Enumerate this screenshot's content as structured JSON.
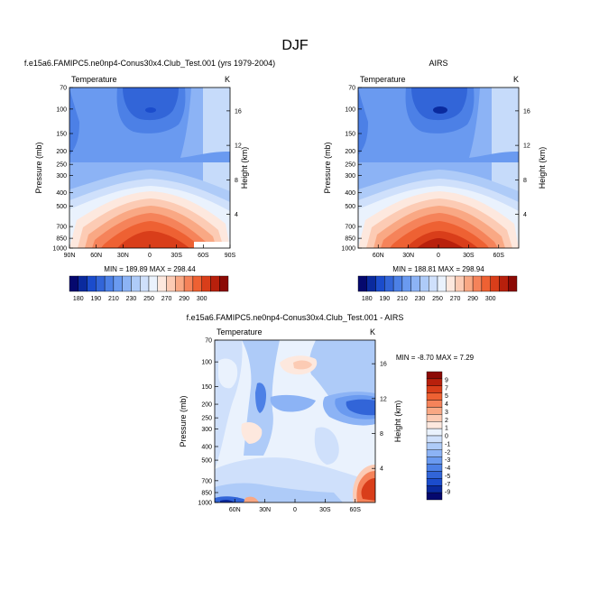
{
  "page_title": "DJF",
  "chart_data": [
    {
      "type": "heatmap",
      "title": "f.e15a6.FAMIPC5.ne0np4-Conus30x4.Club_Test.001 (yrs 1979-2004)",
      "subtitle_left": "Temperature",
      "subtitle_right": "K",
      "ylabel": "Pressure (mb)",
      "ylabel_right": "Height (km)",
      "x_ticks": [
        "90N",
        "60N",
        "30N",
        "0",
        "30S",
        "60S",
        "90S"
      ],
      "x_values": [
        90,
        60,
        30,
        0,
        -30,
        -60,
        -90
      ],
      "y_ticks": [
        "70",
        "100",
        "150",
        "200",
        "250",
        "300",
        "400",
        "500",
        "700",
        "850",
        "1000"
      ],
      "y_values": [
        70,
        100,
        150,
        200,
        250,
        300,
        400,
        500,
        700,
        850,
        1000
      ],
      "y_log": true,
      "height_ticks": [
        "16",
        "12",
        "8",
        "4"
      ],
      "height_values": [
        16,
        12,
        8,
        4
      ],
      "stats": "MIN = 189.89   MAX = 298.44",
      "min": 189.89,
      "max": 298.44
    },
    {
      "type": "heatmap",
      "title": "AIRS",
      "subtitle_left": "Temperature",
      "subtitle_right": "K",
      "ylabel": "Pressure (mb)",
      "ylabel_right": "Height (km)",
      "x_ticks": [
        "60N",
        "30N",
        "0",
        "30S",
        "60S"
      ],
      "x_values": [
        60,
        30,
        0,
        -30,
        -60
      ],
      "y_ticks": [
        "70",
        "100",
        "150",
        "200",
        "250",
        "300",
        "400",
        "500",
        "700",
        "850",
        "1000"
      ],
      "y_values": [
        70,
        100,
        150,
        200,
        250,
        300,
        400,
        500,
        700,
        850,
        1000
      ],
      "y_log": true,
      "height_ticks": [
        "16",
        "12",
        "8",
        "4"
      ],
      "height_values": [
        16,
        12,
        8,
        4
      ],
      "stats": "MIN = 188.81   MAX = 298.94",
      "min": 188.81,
      "max": 298.94
    },
    {
      "type": "heatmap",
      "title": "f.e15a6.FAMIPC5.ne0np4-Conus30x4.Club_Test.001 - AIRS",
      "subtitle_left": "Temperature",
      "subtitle_right": "K",
      "ylabel": "Pressure (mb)",
      "ylabel_right": "Height (km)",
      "x_ticks": [
        "60N",
        "30N",
        "0",
        "30S",
        "60S"
      ],
      "x_values": [
        60,
        30,
        0,
        -30,
        -60
      ],
      "y_ticks": [
        "70",
        "100",
        "150",
        "200",
        "250",
        "300",
        "400",
        "500",
        "700",
        "850",
        "1000"
      ],
      "y_values": [
        70,
        100,
        150,
        200,
        250,
        300,
        400,
        500,
        700,
        850,
        1000
      ],
      "y_log": true,
      "height_ticks": [
        "16",
        "12",
        "8",
        "4"
      ],
      "height_values": [
        16,
        12,
        8,
        4
      ],
      "stats": "MIN = -8.70   MAX =  7.29",
      "min": -8.7,
      "max": 7.29
    }
  ],
  "colorbar_temperature": {
    "labels": [
      "180",
      "190",
      "210",
      "230",
      "250",
      "270",
      "290",
      "300"
    ],
    "colors": [
      "#05086e",
      "#0a2a9e",
      "#1b4ccc",
      "#3265d8",
      "#4c80e6",
      "#6a9af0",
      "#8cb3f5",
      "#aecbf8",
      "#cfe0fb",
      "#eaf2fd",
      "#fde8de",
      "#fccbb4",
      "#f9a884",
      "#f5835a",
      "#ee6133",
      "#d93e1a",
      "#b8200c",
      "#8c0a05"
    ]
  },
  "colorbar_difference": {
    "labels": [
      "9",
      "7",
      "5",
      "4",
      "3",
      "2",
      "1",
      "0",
      "-1",
      "-2",
      "-3",
      "-4",
      "-5",
      "-7",
      "-9"
    ],
    "colors": [
      "#8c0a05",
      "#b8200c",
      "#d93e1a",
      "#ee6133",
      "#f5835a",
      "#f9a884",
      "#fccbb4",
      "#fde8de",
      "#eaf2fd",
      "#cfe0fb",
      "#aecbf8",
      "#8cb3f5",
      "#6a9af0",
      "#4c80e6",
      "#3265d8",
      "#1b4ccc",
      "#0a2a9e",
      "#05086e"
    ]
  }
}
